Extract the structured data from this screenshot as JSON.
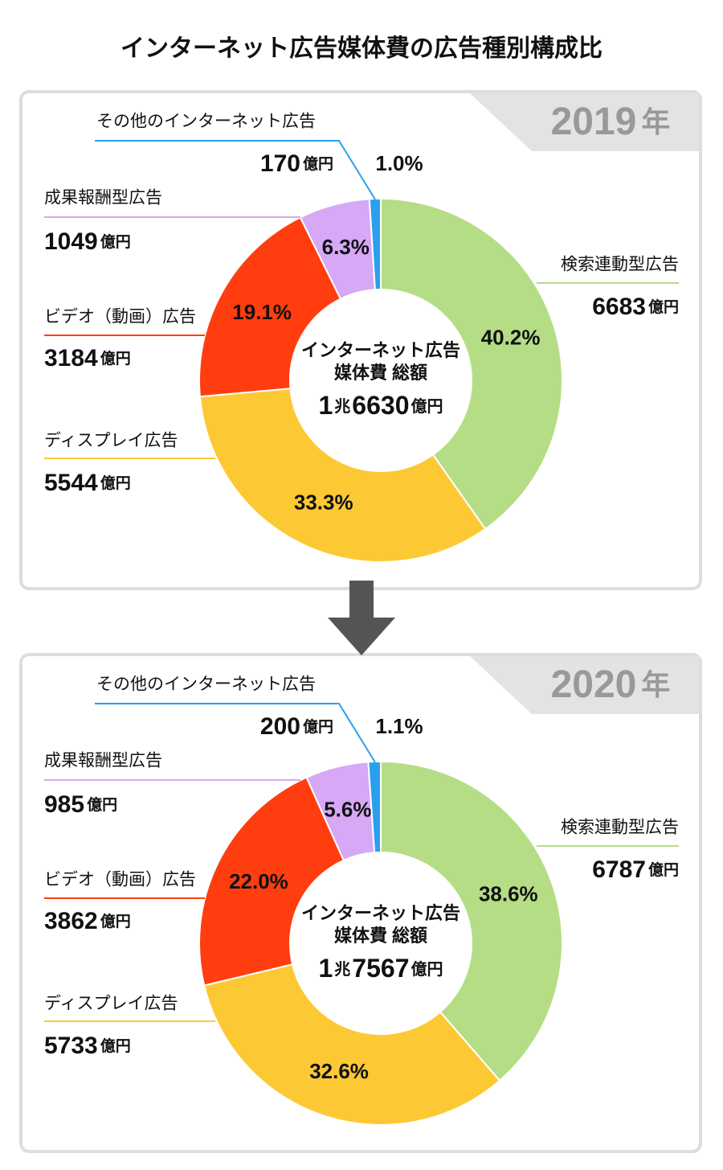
{
  "title": "インターネット広告媒体費の広告種別構成比",
  "chart_data": [
    {
      "type": "pie",
      "year": "2019",
      "year_suffix": "年",
      "center_lines": [
        "インターネット広告",
        "媒体費 総額"
      ],
      "total_parts": [
        "1",
        "兆",
        "6630",
        "億円"
      ],
      "categories": [
        "検索連動型広告",
        "ディスプレイ広告",
        "ビデオ（動画）広告",
        "成果報酬型広告",
        "その他のインターネット広告"
      ],
      "values": [
        40.2,
        33.3,
        19.1,
        6.3,
        1.0
      ],
      "value_labels": [
        "40.2%",
        "33.3%",
        "19.1%",
        "6.3%",
        "1.0%"
      ],
      "amounts": [
        6683,
        5544,
        3184,
        1049,
        170
      ],
      "amount_unit": "億円",
      "colors": [
        "#b5dd85",
        "#fcc935",
        "#ff3d0f",
        "#d6a8f5",
        "#2a9fee"
      ]
    },
    {
      "type": "pie",
      "year": "2020",
      "year_suffix": "年",
      "center_lines": [
        "インターネット広告",
        "媒体費 総額"
      ],
      "total_parts": [
        "1",
        "兆",
        "7567",
        "億円"
      ],
      "categories": [
        "検索連動型広告",
        "ディスプレイ広告",
        "ビデオ（動画）広告",
        "成果報酬型広告",
        "その他のインターネット広告"
      ],
      "values": [
        38.6,
        32.6,
        22.0,
        5.6,
        1.1
      ],
      "value_labels": [
        "38.6%",
        "32.6%",
        "22.0%",
        "5.6%",
        "1.1%"
      ],
      "amounts": [
        6787,
        5733,
        3862,
        985,
        200
      ],
      "amount_unit": "億円",
      "colors": [
        "#b5dd85",
        "#fcc935",
        "#ff3d0f",
        "#d6a8f5",
        "#2a9fee"
      ]
    }
  ]
}
